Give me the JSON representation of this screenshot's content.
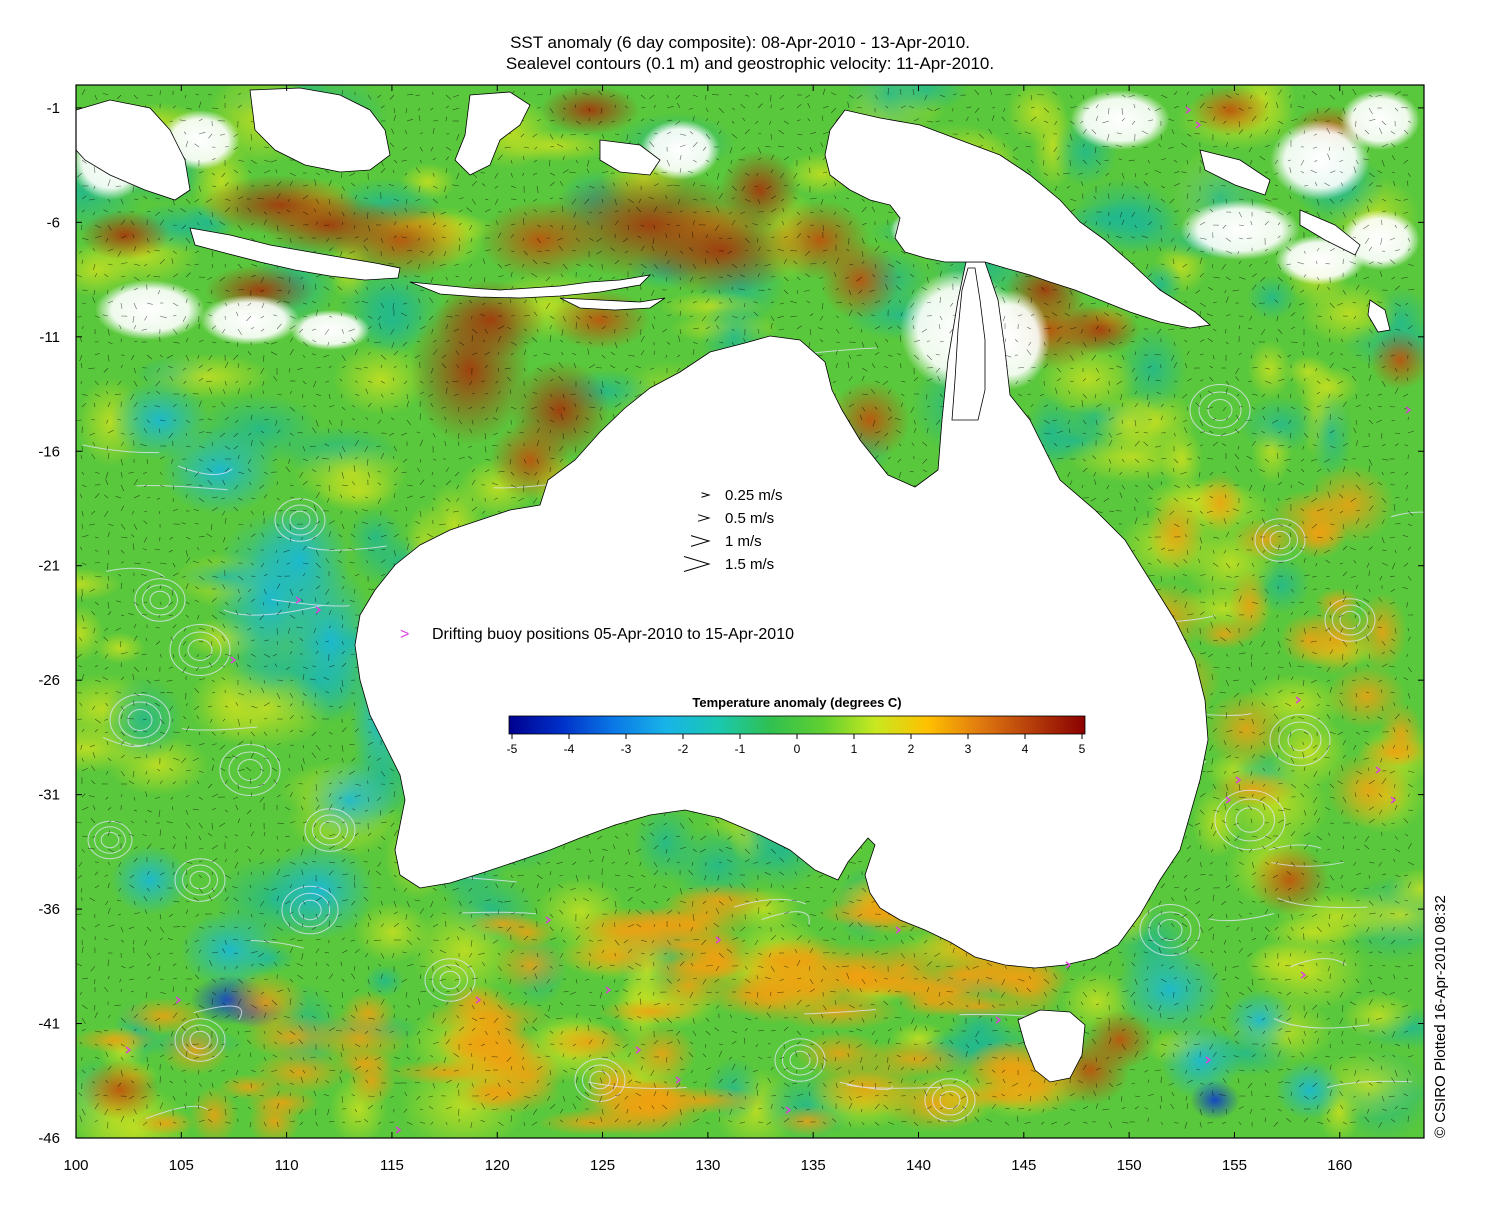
{
  "title_line1": "SST anomaly (6 day composite): 08-Apr-2010 - 13-Apr-2010.",
  "title_line2": "Sealevel contours (0.1 m) and geostrophic velocity: 11-Apr-2010.",
  "map": {
    "lon_range": [
      100,
      164
    ],
    "lat_range": [
      -46,
      0
    ],
    "x_ticks": [
      "100",
      "105",
      "110",
      "115",
      "120",
      "125",
      "130",
      "135",
      "140",
      "145",
      "150",
      "155",
      "160"
    ],
    "y_ticks": [
      "-1",
      "-6",
      "-11",
      "-16",
      "-21",
      "-26",
      "-31",
      "-36",
      "-41",
      "-46"
    ],
    "land_color": "#ffffff",
    "contour_color": "#e8e8ff",
    "vector_color": "#000000"
  },
  "velocity_legend": [
    {
      "label": "0.25 m/s",
      "speed": 0.25
    },
    {
      "label": "0.5 m/s",
      "speed": 0.5
    },
    {
      "label": "1 m/s",
      "speed": 1
    },
    {
      "label": "1.5 m/s",
      "speed": 1.5
    }
  ],
  "buoy_legend": {
    "symbol": ">",
    "label": "Drifting buoy positions 05-Apr-2010 to 15-Apr-2010",
    "color": "#e040e0"
  },
  "colorbar": {
    "title": "Temperature anomaly (degrees C)",
    "min": -5,
    "max": 5,
    "tick_labels": [
      "-5",
      "-4",
      "-3",
      "-2",
      "-1",
      "0",
      "1",
      "2",
      "3",
      "4",
      "5"
    ],
    "colors": [
      "#00008f",
      "#0030c8",
      "#0a78e6",
      "#18b4e8",
      "#1ac8b0",
      "#30c050",
      "#60d030",
      "#c8e820",
      "#ffc000",
      "#e07a10",
      "#b43c0a",
      "#8a0000"
    ]
  },
  "watermark": "© CSIRO Plotted 16-Apr-2010 08:32"
}
